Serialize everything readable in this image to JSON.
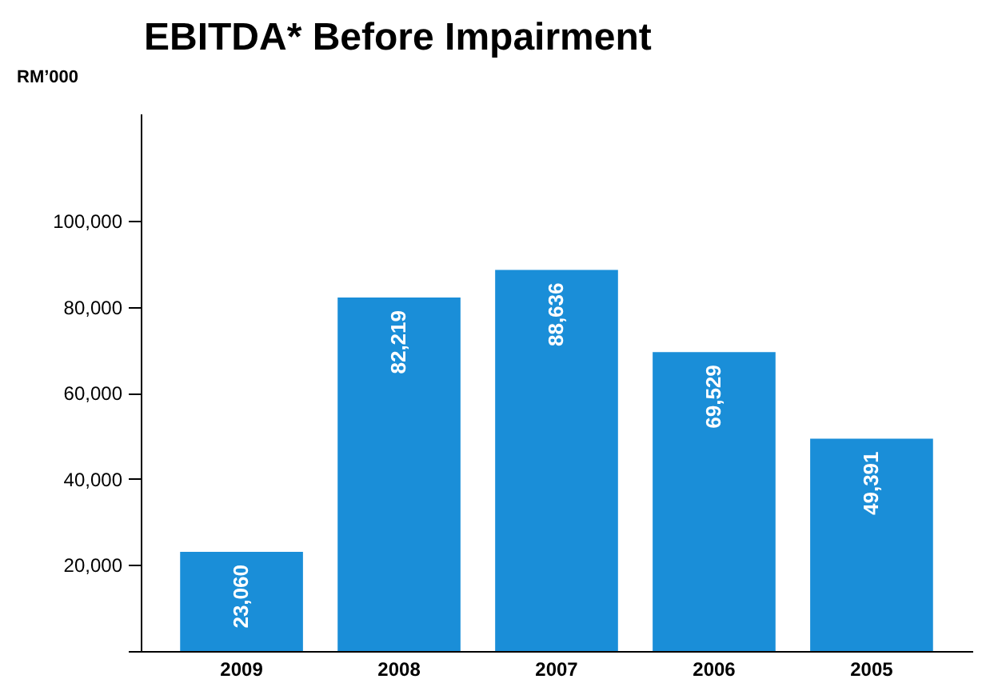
{
  "chart_data": {
    "type": "bar",
    "title": "EBITDA* Before Impairment",
    "ylabel": "RM’000",
    "categories": [
      "2009",
      "2008",
      "2007",
      "2006",
      "2005"
    ],
    "values": [
      23060,
      82219,
      88636,
      69529,
      49391
    ],
    "color": "#1a8ed8",
    "ylim": [
      0,
      125000
    ],
    "yticks": [
      {
        "value": 0,
        "label": null
      },
      {
        "value": 20000,
        "label": "20,000"
      },
      {
        "value": 40000,
        "label": "40,000"
      },
      {
        "value": 60000,
        "label": "60,000"
      },
      {
        "value": 80000,
        "label": "80,000"
      },
      {
        "value": 100000,
        "label": "100,000"
      }
    ],
    "value_labels": [
      "23,060",
      "82,219",
      "88,636",
      "69,529",
      "49,391"
    ]
  }
}
